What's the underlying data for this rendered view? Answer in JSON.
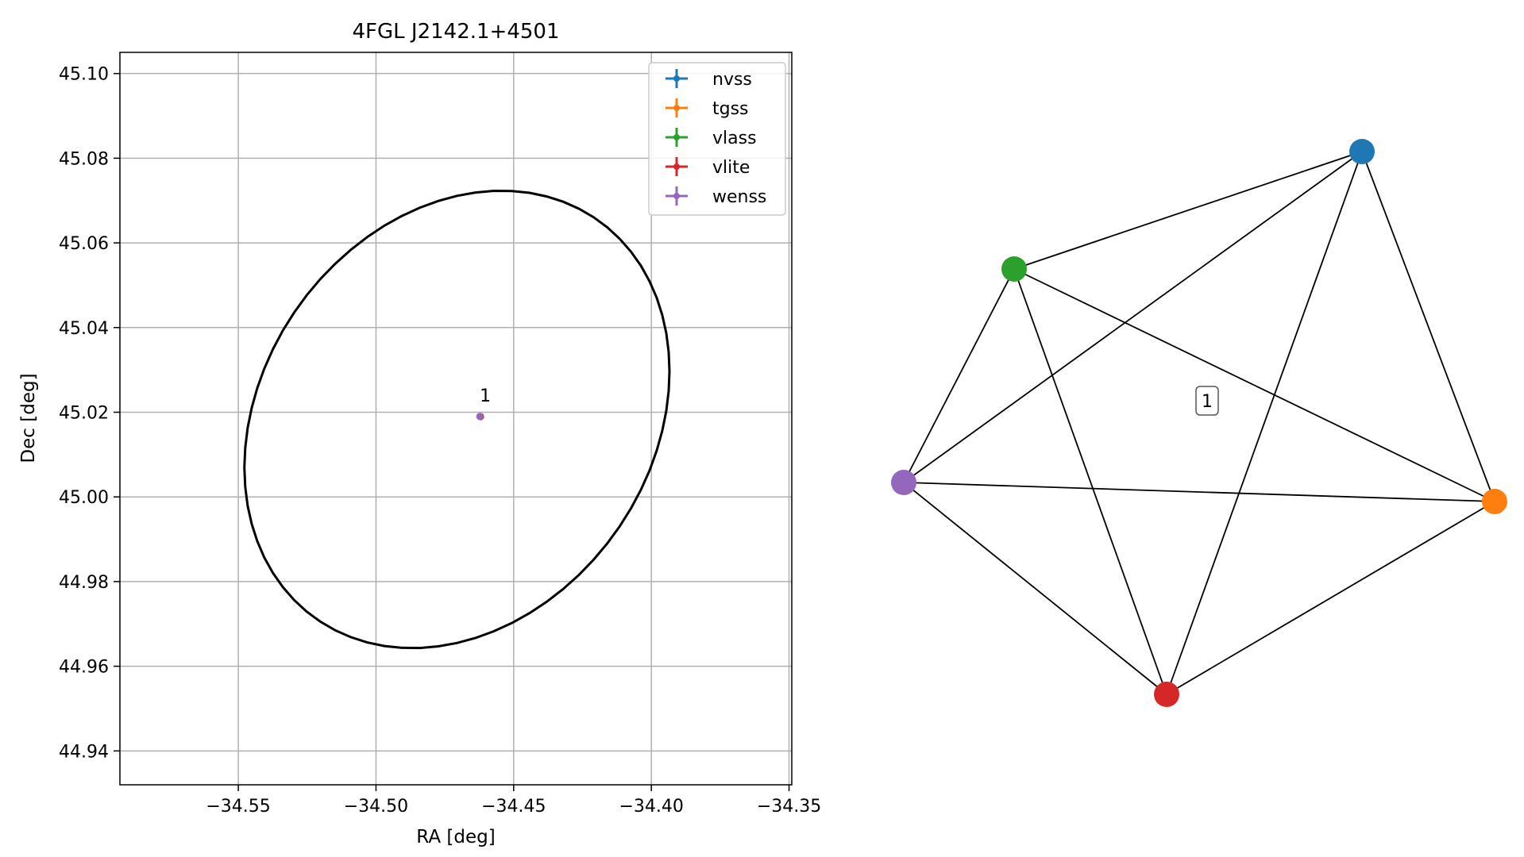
{
  "chart_data": [
    {
      "type": "scatter",
      "title": "4FGL J2142.1+4501",
      "xlabel": "RA [deg]",
      "ylabel": "Dec [deg]",
      "xlim": [
        -34.593,
        -34.349
      ],
      "ylim": [
        44.932,
        45.105
      ],
      "xticks": [
        -34.55,
        -34.5,
        -34.45,
        -34.4,
        -34.35
      ],
      "xtick_labels": [
        "−34.55",
        "−34.50",
        "−34.45",
        "−34.40",
        "−34.35"
      ],
      "yticks": [
        44.94,
        44.96,
        44.98,
        45.0,
        45.02,
        45.04,
        45.06,
        45.08,
        45.1
      ],
      "ytick_labels": [
        "44.94",
        "44.96",
        "44.98",
        "45.00",
        "45.02",
        "45.04",
        "45.06",
        "45.08",
        "45.10"
      ],
      "grid": true,
      "legend_position": "top-right",
      "series": [
        {
          "name": "nvss",
          "color": "#1f77b4",
          "x": [
            -34.4622
          ],
          "y": [
            45.019
          ]
        },
        {
          "name": "tgss",
          "color": "#ff7f0e",
          "x": [
            -34.462
          ],
          "y": [
            45.0189
          ]
        },
        {
          "name": "vlass",
          "color": "#2ca02c",
          "x": [
            -34.4622
          ],
          "y": [
            45.019
          ]
        },
        {
          "name": "vlite",
          "color": "#d62728",
          "x": [
            -34.4621
          ],
          "y": [
            45.019
          ]
        },
        {
          "name": "wenss",
          "color": "#9467bd",
          "x": [
            -34.4623
          ],
          "y": [
            45.019
          ]
        }
      ],
      "annotations": [
        {
          "text": "1",
          "x": -34.4603,
          "y": 45.0225
        }
      ],
      "error_ellipse": {
        "center": [
          -34.4706,
          45.0183
        ],
        "half_width": 0.0787,
        "half_height": 0.0518,
        "angle_deg": 15,
        "color": "#000000"
      }
    },
    {
      "type": "graph",
      "group_label": "1",
      "nodes": [
        {
          "id": "nvss",
          "color": "#1f77b4"
        },
        {
          "id": "tgss",
          "color": "#ff7f0e"
        },
        {
          "id": "vlass",
          "color": "#2ca02c"
        },
        {
          "id": "vlite",
          "color": "#d62728"
        },
        {
          "id": "wenss",
          "color": "#9467bd"
        }
      ],
      "edges": [
        [
          "vlass",
          "nvss"
        ],
        [
          "wenss",
          "nvss"
        ],
        [
          "vlite",
          "nvss"
        ],
        [
          "nvss",
          "tgss"
        ],
        [
          "vlass",
          "wenss"
        ],
        [
          "vlass",
          "vlite"
        ],
        [
          "vlass",
          "tgss"
        ],
        [
          "wenss",
          "tgss"
        ],
        [
          "wenss",
          "vlite"
        ],
        [
          "vlite",
          "tgss"
        ]
      ]
    }
  ]
}
